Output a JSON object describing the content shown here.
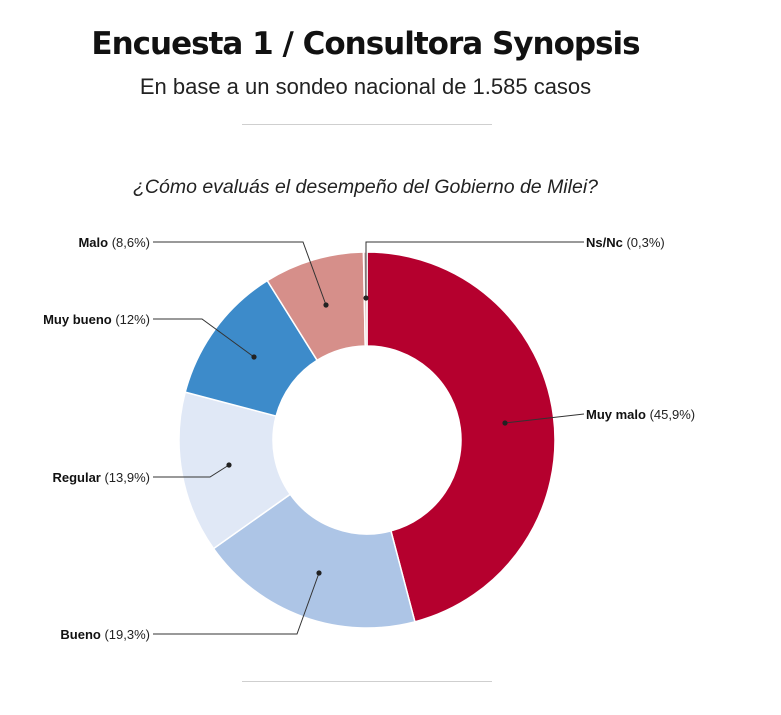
{
  "header": {
    "title": "Encuesta 1 / Consultora Synopsis",
    "subtitle": "En base a un sondeo nacional de 1.585 casos"
  },
  "chart_data": {
    "type": "pie",
    "variant": "donut",
    "title": "¿Cómo evaluás el desempeño del Gobierno de Milei?",
    "slices": [
      {
        "name": "Muy malo",
        "value": 45.9,
        "value_label": "(45,9%)",
        "color": "#b5002e",
        "label_side": "right"
      },
      {
        "name": "Bueno",
        "value": 19.3,
        "value_label": "(19,3%)",
        "color": "#adc5e6",
        "label_side": "left"
      },
      {
        "name": "Regular",
        "value": 13.9,
        "value_label": "(13,9%)",
        "color": "#e0e8f6",
        "label_side": "left"
      },
      {
        "name": "Muy bueno",
        "value": 12,
        "value_label": "(12%)",
        "color": "#3d8bca",
        "label_side": "left"
      },
      {
        "name": "Malo",
        "value": 8.6,
        "value_label": "(8,6%)",
        "color": "#d68f8a",
        "label_side": "left"
      },
      {
        "name": "Ns/Nc",
        "value": 0.3,
        "value_label": "(0,3%)",
        "color": "#d9b8b8",
        "label_side": "right"
      }
    ],
    "start": "12 o'clock",
    "direction": "clockwise",
    "legend": "none"
  }
}
